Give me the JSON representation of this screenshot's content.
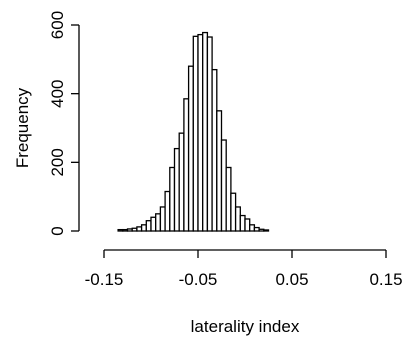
{
  "chart_data": {
    "type": "bar",
    "title": "",
    "xlabel": "laterality index",
    "ylabel": "Frequency",
    "xlim": [
      -0.15,
      0.15
    ],
    "ylim": [
      0,
      600
    ],
    "x_ticks": [
      -0.15,
      -0.05,
      0.05,
      0.15
    ],
    "x_tick_labels": [
      "-0.15",
      "-0.05",
      "0.05",
      "0.15"
    ],
    "y_ticks": [
      0,
      200,
      400,
      600
    ],
    "y_tick_labels": [
      "0",
      "200",
      "400",
      "600"
    ],
    "grid": false,
    "bar_color": "#ffffff",
    "edge_color": "#000000",
    "bins": [
      {
        "start": -0.135,
        "end": -0.13,
        "value": 4
      },
      {
        "start": -0.13,
        "end": -0.125,
        "value": 4
      },
      {
        "start": -0.125,
        "end": -0.12,
        "value": 6
      },
      {
        "start": -0.12,
        "end": -0.115,
        "value": 8
      },
      {
        "start": -0.115,
        "end": -0.11,
        "value": 12
      },
      {
        "start": -0.11,
        "end": -0.105,
        "value": 18
      },
      {
        "start": -0.105,
        "end": -0.1,
        "value": 30
      },
      {
        "start": -0.1,
        "end": -0.095,
        "value": 40
      },
      {
        "start": -0.095,
        "end": -0.09,
        "value": 50
      },
      {
        "start": -0.09,
        "end": -0.085,
        "value": 70
      },
      {
        "start": -0.085,
        "end": -0.08,
        "value": 115
      },
      {
        "start": -0.08,
        "end": -0.075,
        "value": 185
      },
      {
        "start": -0.075,
        "end": -0.07,
        "value": 240
      },
      {
        "start": -0.07,
        "end": -0.065,
        "value": 285
      },
      {
        "start": -0.065,
        "end": -0.06,
        "value": 385
      },
      {
        "start": -0.06,
        "end": -0.055,
        "value": 480
      },
      {
        "start": -0.055,
        "end": -0.05,
        "value": 567
      },
      {
        "start": -0.05,
        "end": -0.045,
        "value": 572
      },
      {
        "start": -0.045,
        "end": -0.04,
        "value": 578
      },
      {
        "start": -0.04,
        "end": -0.035,
        "value": 565
      },
      {
        "start": -0.035,
        "end": -0.03,
        "value": 470
      },
      {
        "start": -0.03,
        "end": -0.025,
        "value": 350
      },
      {
        "start": -0.025,
        "end": -0.02,
        "value": 265
      },
      {
        "start": -0.02,
        "end": -0.015,
        "value": 185
      },
      {
        "start": -0.015,
        "end": -0.01,
        "value": 110
      },
      {
        "start": -0.01,
        "end": -0.005,
        "value": 70
      },
      {
        "start": -0.005,
        "end": 0.0,
        "value": 45
      },
      {
        "start": 0.0,
        "end": 0.005,
        "value": 35
      },
      {
        "start": 0.005,
        "end": 0.01,
        "value": 18
      },
      {
        "start": 0.01,
        "end": 0.015,
        "value": 10
      },
      {
        "start": 0.015,
        "end": 0.02,
        "value": 5
      },
      {
        "start": 0.02,
        "end": 0.025,
        "value": 3
      }
    ]
  }
}
